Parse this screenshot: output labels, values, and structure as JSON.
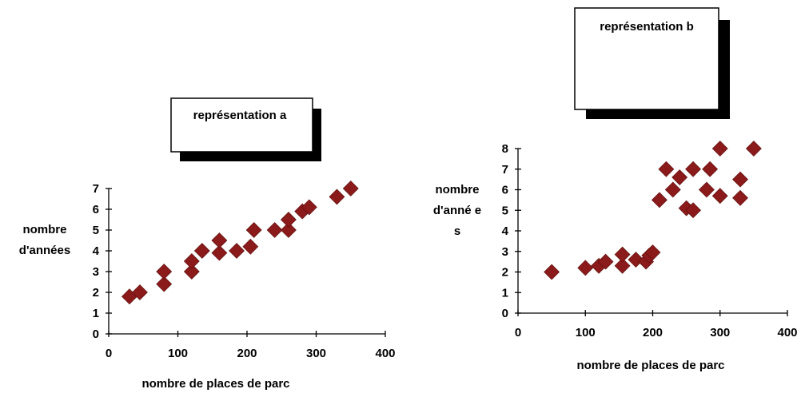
{
  "chart_data": [
    {
      "type": "scatter",
      "title": "représentation a",
      "xlabel": "nombre de places de parc",
      "ylabel_lines": [
        "nombre",
        "d'années"
      ],
      "xlim": [
        0,
        400
      ],
      "ylim": [
        0,
        7
      ],
      "xticks": [
        0,
        100,
        200,
        300,
        400
      ],
      "yticks": [
        0,
        1,
        2,
        3,
        4,
        5,
        6,
        7
      ],
      "marker": "diamond",
      "marker_color": "#8B1A1A",
      "grid": false,
      "points": [
        {
          "x": 30,
          "y": 1.8
        },
        {
          "x": 45,
          "y": 2
        },
        {
          "x": 80,
          "y": 2.4
        },
        {
          "x": 80,
          "y": 3
        },
        {
          "x": 120,
          "y": 3
        },
        {
          "x": 120,
          "y": 3.5
        },
        {
          "x": 135,
          "y": 4
        },
        {
          "x": 160,
          "y": 3.9
        },
        {
          "x": 160,
          "y": 4.5
        },
        {
          "x": 185,
          "y": 4
        },
        {
          "x": 205,
          "y": 4.2
        },
        {
          "x": 210,
          "y": 5
        },
        {
          "x": 240,
          "y": 5
        },
        {
          "x": 260,
          "y": 5
        },
        {
          "x": 260,
          "y": 5.5
        },
        {
          "x": 280,
          "y": 5.9
        },
        {
          "x": 290,
          "y": 6.1
        },
        {
          "x": 330,
          "y": 6.6
        },
        {
          "x": 350,
          "y": 7
        }
      ]
    },
    {
      "type": "scatter",
      "title": "représentation b",
      "xlabel": "nombre de places de parc",
      "ylabel_lines": [
        "nombre",
        "d'anné e",
        "s"
      ],
      "xlim": [
        0,
        400
      ],
      "ylim": [
        0,
        8
      ],
      "xticks": [
        0,
        100,
        200,
        300,
        400
      ],
      "yticks": [
        0,
        1,
        2,
        3,
        4,
        5,
        6,
        7,
        8
      ],
      "marker": "diamond",
      "marker_color": "#8B1A1A",
      "grid": false,
      "points": [
        {
          "x": 50,
          "y": 2
        },
        {
          "x": 100,
          "y": 2.2
        },
        {
          "x": 120,
          "y": 2.3
        },
        {
          "x": 130,
          "y": 2.5
        },
        {
          "x": 155,
          "y": 2.3
        },
        {
          "x": 155,
          "y": 2.85
        },
        {
          "x": 175,
          "y": 2.6
        },
        {
          "x": 190,
          "y": 2.5
        },
        {
          "x": 195,
          "y": 2.8
        },
        {
          "x": 200,
          "y": 2.95
        },
        {
          "x": 210,
          "y": 5.5
        },
        {
          "x": 220,
          "y": 7
        },
        {
          "x": 230,
          "y": 6
        },
        {
          "x": 240,
          "y": 6.6
        },
        {
          "x": 250,
          "y": 5.1
        },
        {
          "x": 260,
          "y": 5
        },
        {
          "x": 260,
          "y": 7
        },
        {
          "x": 280,
          "y": 6
        },
        {
          "x": 285,
          "y": 7
        },
        {
          "x": 300,
          "y": 8
        },
        {
          "x": 300,
          "y": 5.7
        },
        {
          "x": 330,
          "y": 5.6
        },
        {
          "x": 330,
          "y": 6.5
        },
        {
          "x": 350,
          "y": 8
        }
      ]
    }
  ]
}
